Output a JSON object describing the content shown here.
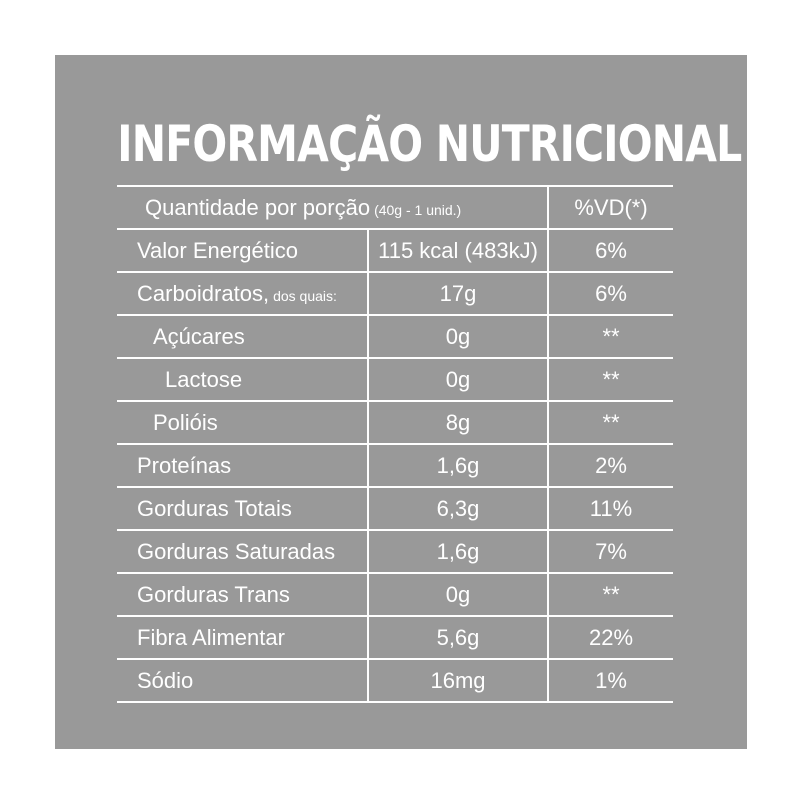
{
  "title": "INFORMAÇÃO NUTRICIONAL",
  "header": {
    "label": "Quantidade por porção",
    "portion": "(40g - 1 unid.)",
    "vd": "%VD(*)"
  },
  "rows": [
    {
      "name": "Valor Energético",
      "note": "",
      "amount": "115 kcal (483kJ)",
      "vd": "6%"
    },
    {
      "name": "Carboidratos,",
      "note": "dos quais:",
      "amount": "17g",
      "vd": "6%"
    },
    {
      "name": "Açúcares",
      "note": "",
      "amount": "0g",
      "vd": "**"
    },
    {
      "name": "Lactose",
      "note": "",
      "amount": "0g",
      "vd": "**"
    },
    {
      "name": "Polióis",
      "note": "",
      "amount": "8g",
      "vd": "**"
    },
    {
      "name": "Proteínas",
      "note": "",
      "amount": "1,6g",
      "vd": "2%"
    },
    {
      "name": "Gorduras Totais",
      "note": "",
      "amount": "6,3g",
      "vd": "11%"
    },
    {
      "name": "Gorduras Saturadas",
      "note": "",
      "amount": "1,6g",
      "vd": "7%"
    },
    {
      "name": "Gorduras Trans",
      "note": "",
      "amount": "0g",
      "vd": "**"
    },
    {
      "name": "Fibra Alimentar",
      "note": "",
      "amount": "5,6g",
      "vd": "22%"
    },
    {
      "name": "Sódio",
      "note": "",
      "amount": "16mg",
      "vd": "1%"
    }
  ]
}
